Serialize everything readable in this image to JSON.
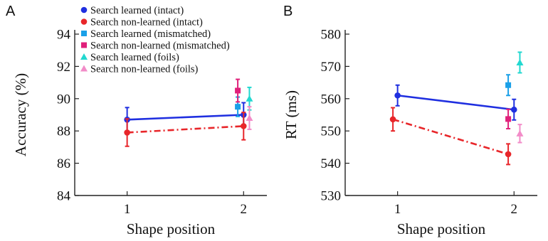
{
  "chart_data": [
    {
      "type": "line",
      "panel_label": "A",
      "xlabel": "Shape position",
      "ylabel": "Accuracy (%)",
      "xlim": [
        0.55,
        2.2
      ],
      "ylim": [
        84,
        94
      ],
      "xticks": [
        1,
        2
      ],
      "yticks": [
        84,
        86,
        88,
        90,
        92,
        94
      ],
      "legend": {
        "placement": "top-center",
        "entries": [
          {
            "label": "Search learned (intact)",
            "color": "#1f2fe0",
            "marker": "circle"
          },
          {
            "label": "Search non-learned (intact)",
            "color": "#e8262a",
            "marker": "circle"
          },
          {
            "label": "Search learned (mismatched)",
            "color": "#1aa0e8",
            "marker": "square"
          },
          {
            "label": "Search non-learned (mismatched)",
            "color": "#e0207a",
            "marker": "square"
          },
          {
            "label": "Search learned (foils)",
            "color": "#22d8d0",
            "marker": "triangle"
          },
          {
            "label": "Search non-learned (foils)",
            "color": "#f28cc8",
            "marker": "triangle"
          }
        ]
      },
      "series": [
        {
          "name": "Search learned (intact)",
          "color": "#1f2fe0",
          "marker": "circle",
          "line": "solid",
          "points": [
            {
              "x": 1,
              "y": 88.7,
              "err": 0.75
            },
            {
              "x": 2,
              "y": 89.0,
              "err": 0.75
            }
          ]
        },
        {
          "name": "Search non-learned (intact)",
          "color": "#e8262a",
          "marker": "circle",
          "line": "dashdot",
          "points": [
            {
              "x": 1,
              "y": 87.9,
              "err": 0.85
            },
            {
              "x": 2,
              "y": 88.3,
              "err": 0.85
            }
          ]
        },
        {
          "name": "Search learned (mismatched)",
          "color": "#1aa0e8",
          "marker": "square",
          "line": "none",
          "points": [
            {
              "x": 1.95,
              "y": 89.5,
              "err": 0.6
            }
          ]
        },
        {
          "name": "Search non-learned (mismatched)",
          "color": "#e0207a",
          "marker": "square",
          "line": "none",
          "points": [
            {
              "x": 1.95,
              "y": 90.5,
              "err": 0.7
            }
          ]
        },
        {
          "name": "Search learned (foils)",
          "color": "#22d8d0",
          "marker": "triangle",
          "line": "none",
          "points": [
            {
              "x": 2.05,
              "y": 90.0,
              "err": 0.7
            }
          ]
        },
        {
          "name": "Search non-learned (foils)",
          "color": "#f28cc8",
          "marker": "triangle",
          "line": "none",
          "points": [
            {
              "x": 2.05,
              "y": 88.8,
              "err": 0.7
            }
          ]
        }
      ]
    },
    {
      "type": "line",
      "panel_label": "B",
      "xlabel": "Shape position",
      "ylabel": "RT (ms)",
      "xlim": [
        0.55,
        2.2
      ],
      "ylim": [
        530,
        580
      ],
      "xticks": [
        1,
        2
      ],
      "yticks": [
        530,
        540,
        550,
        560,
        570,
        580
      ],
      "series": [
        {
          "name": "Search learned (intact)",
          "color": "#1f2fe0",
          "marker": "circle",
          "line": "solid",
          "points": [
            {
              "x": 1,
              "y": 561,
              "err": 3.2
            },
            {
              "x": 2,
              "y": 556.6,
              "err": 3.2
            }
          ]
        },
        {
          "name": "Search non-learned (intact)",
          "color": "#e8262a",
          "marker": "circle",
          "line": "dashdot",
          "points": [
            {
              "x": 0.96,
              "y": 553.6,
              "err": 3.6
            },
            {
              "x": 1.95,
              "y": 542.8,
              "err": 3.2
            }
          ]
        },
        {
          "name": "Search learned (mismatched)",
          "color": "#1aa0e8",
          "marker": "square",
          "line": "none",
          "points": [
            {
              "x": 1.95,
              "y": 564.2,
              "err": 3.2
            }
          ]
        },
        {
          "name": "Search non-learned (mismatched)",
          "color": "#e0207a",
          "marker": "square",
          "line": "none",
          "points": [
            {
              "x": 1.95,
              "y": 553.7,
              "err": 3.0
            }
          ]
        },
        {
          "name": "Search learned (foils)",
          "color": "#22d8d0",
          "marker": "triangle",
          "line": "none",
          "points": [
            {
              "x": 2.05,
              "y": 571.2,
              "err": 3.2
            }
          ]
        },
        {
          "name": "Search non-learned (foils)",
          "color": "#f28cc8",
          "marker": "triangle",
          "line": "none",
          "points": [
            {
              "x": 2.05,
              "y": 549.2,
              "err": 2.8
            }
          ]
        }
      ]
    }
  ]
}
